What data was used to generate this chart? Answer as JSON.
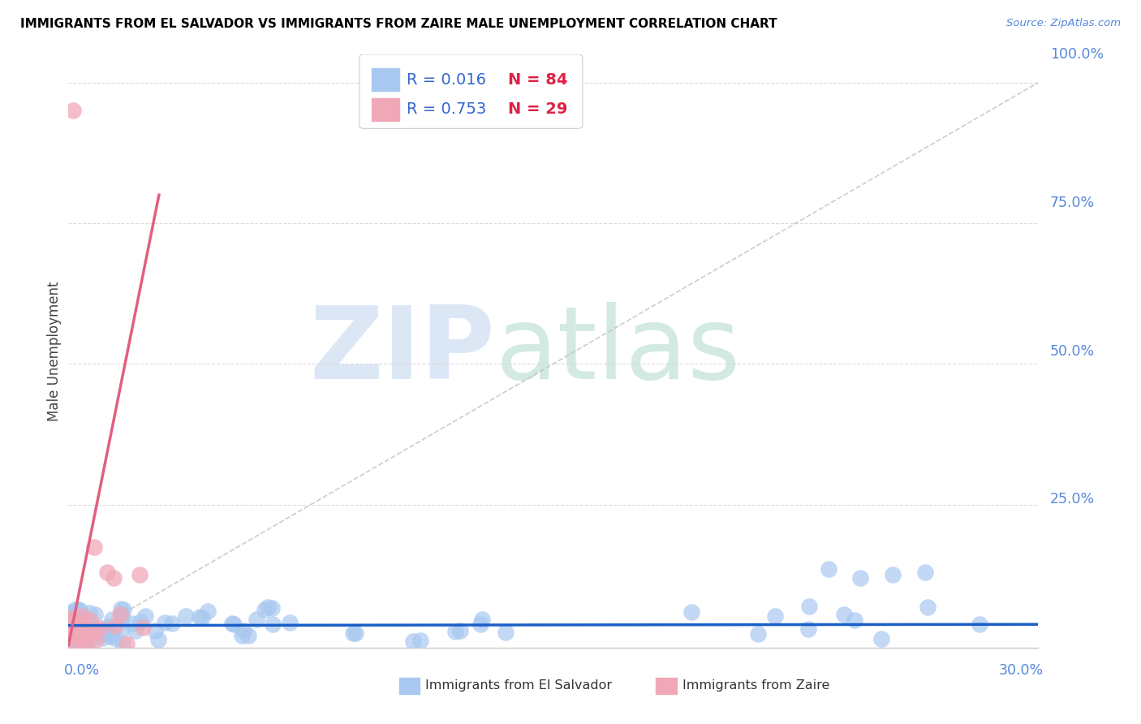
{
  "title": "IMMIGRANTS FROM EL SALVADOR VS IMMIGRANTS FROM ZAIRE MALE UNEMPLOYMENT CORRELATION CHART",
  "source": "Source: ZipAtlas.com",
  "ylabel": "Male Unemployment",
  "xlim": [
    0.0,
    0.3
  ],
  "ylim": [
    -0.005,
    1.05
  ],
  "blue_R": "0.016",
  "blue_N": "84",
  "pink_R": "0.753",
  "pink_N": "29",
  "blue_color": "#a8c8f0",
  "pink_color": "#f0a8b8",
  "blue_line_color": "#1a5fc8",
  "pink_line_color": "#e06080",
  "ref_line_color": "#c0c0c0",
  "label_color": "#5588dd",
  "legend_text_color": "#3366cc",
  "background_color": "#ffffff",
  "grid_color": "#d8d8d8",
  "title_fontsize": 11.0,
  "axis_fontsize": 12.5,
  "legend_fontsize": 14.0,
  "pink_line_x0": 0.0,
  "pink_line_y0": 0.0,
  "pink_line_x1": 0.028,
  "pink_line_y1": 0.8,
  "blue_line_x0": 0.0,
  "blue_line_x1": 0.3,
  "blue_line_y0": 0.035,
  "blue_line_y1": 0.037,
  "ref_line_x0": 0.0,
  "ref_line_y0": 0.0,
  "ref_line_x1": 0.3,
  "ref_line_y1": 1.0
}
